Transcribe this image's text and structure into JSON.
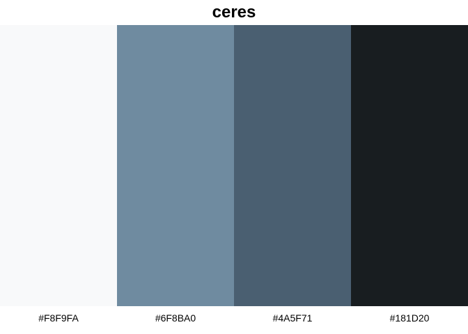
{
  "title": "ceres",
  "colors": [
    {
      "hex": "#F8F9FA",
      "label": "#F8F9FA"
    },
    {
      "hex": "#6F8BA0",
      "label": "#6F8BA0"
    },
    {
      "hex": "#4A5F71",
      "label": "#4A5F71"
    },
    {
      "hex": "#181D20",
      "label": "#181D20"
    }
  ]
}
